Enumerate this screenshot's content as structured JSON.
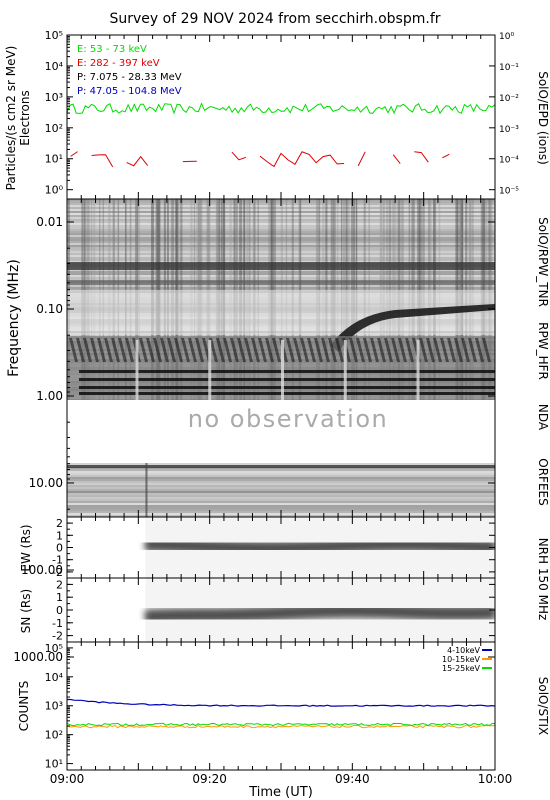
{
  "title": "Survey of 29 NOV 2024 from secchirh.obspm.fr",
  "time_axis": {
    "label": "Time (UT)",
    "ticks": [
      "09:00",
      "09:20",
      "09:40",
      "10:00"
    ],
    "range_min": [
      0,
      60
    ]
  },
  "colors": {
    "green": "#00dd00",
    "red": "#dd0000",
    "black": "#000000",
    "blue": "#0000bb",
    "orange": "#ff9900"
  },
  "chart_data": [
    {
      "id": "epd",
      "type": "line",
      "ylabel": "Particles/(s cm2 sr MeV)",
      "ylabel2": "Electrons",
      "right_label": "SolO/EPD (ions)",
      "ylog": true,
      "ylim": [
        0.5,
        100000
      ],
      "yticks": [
        "10⁰",
        "10¹",
        "10²",
        "10³",
        "10⁴",
        "10⁵"
      ],
      "y2lim": [
        5e-06,
        1
      ],
      "y2ticks": [
        "10⁰",
        "10⁻¹",
        "10⁻²",
        "10⁻³",
        "10⁻⁴",
        "10⁻⁵"
      ],
      "series": [
        {
          "name": "E: 53 - 73 keV",
          "color": "green",
          "level": 420
        },
        {
          "name": "E: 282 - 397 keV",
          "color": "red",
          "level": 9
        },
        {
          "name": "P: 7.075 - 28.33 MeV",
          "color": "black"
        },
        {
          "name": "P: 47.05 - 104.8 MeV",
          "color": "blue"
        }
      ]
    },
    {
      "id": "radio",
      "type": "heatmap",
      "ylabel": "Frequency (MHz)",
      "ylog": true,
      "yticks": [
        "0.01",
        "0.10",
        "1.00",
        "10.00",
        "100.00",
        "1000.00"
      ],
      "right_labels": [
        "SolO/RPW_TNR",
        "RPW_HFR",
        "NDA",
        "ORFEES"
      ],
      "no_obs_text": "no observation"
    },
    {
      "id": "nrh_ew",
      "type": "heatmap",
      "ylabel": "EW (Rs)",
      "ylim": [
        -2.5,
        2.5
      ],
      "yticks": [
        "2",
        "1",
        "0",
        "-1",
        "-2"
      ],
      "start_min": 11
    },
    {
      "id": "nrh_sn",
      "type": "heatmap",
      "ylabel": "SN (Rs)",
      "ylim": [
        -2.5,
        2.5
      ],
      "yticks": [
        "2",
        "1",
        "0",
        "-1",
        "-2"
      ],
      "start_min": 11
    },
    {
      "id": "stix",
      "type": "line",
      "ylabel": "COUNTS",
      "right_label": "SolO/STIX",
      "ylog": true,
      "ylim": [
        10,
        100000
      ],
      "yticks": [
        "10¹",
        "10²",
        "10³",
        "10⁴",
        "10⁵"
      ],
      "series": [
        {
          "name": "4-10keV",
          "color": "blue",
          "start": 1700,
          "end": 1000
        },
        {
          "name": "10-15keV",
          "color": "orange",
          "level": 190
        },
        {
          "name": "15-25keV",
          "color": "green",
          "level": 225
        }
      ]
    }
  ]
}
